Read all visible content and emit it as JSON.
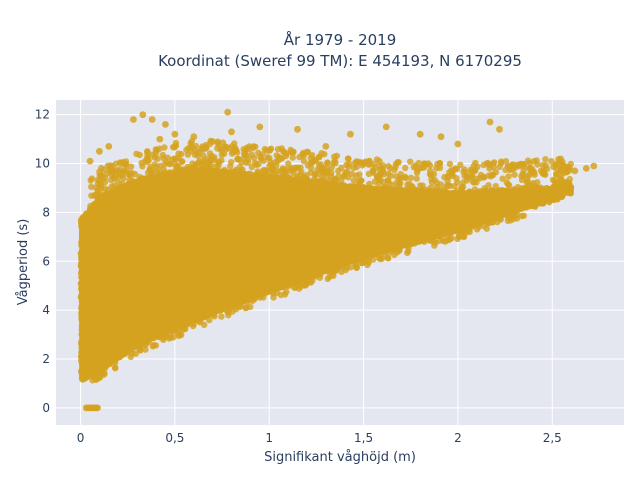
{
  "chart_data": {
    "type": "scatter",
    "title": "År 1979 - 2019",
    "subtitle": "Koordinat (Sweref 99 TM): E 454193, N 6170295",
    "xlabel": "Signifikant våghöjd (m)",
    "ylabel": "Vågperiod (s)",
    "xlim": [
      -0.13,
      2.88
    ],
    "ylim": [
      -0.7,
      12.6
    ],
    "x_ticks": [
      0,
      0.5,
      1,
      1.5,
      2,
      2.5
    ],
    "x_tick_labels": [
      "0",
      "0,5",
      "1",
      "1,5",
      "2",
      "2,5"
    ],
    "y_ticks": [
      0,
      2,
      4,
      6,
      8,
      10,
      12
    ],
    "y_tick_labels": [
      "0",
      "2",
      "4",
      "6",
      "8",
      "10",
      "12"
    ],
    "grid": true,
    "legend": "none",
    "colors": {
      "marker": "#d4a21f",
      "plot_bg": "#e5e7f0",
      "grid": "#ffffff",
      "text": "#2a3f5f"
    },
    "series": [
      {
        "point_density": "very dense band between lower edge and upper edge",
        "lower_edge": {
          "x": [
            0.02,
            0.1,
            0.3,
            0.6,
            1.0,
            1.5,
            2.0,
            2.5
          ],
          "y": [
            1.2,
            1.6,
            2.6,
            3.6,
            4.8,
            6.2,
            7.3,
            8.6
          ]
        },
        "upper_edge": {
          "x": [
            0.02,
            0.1,
            0.3,
            0.6,
            1.0,
            1.5,
            2.0,
            2.5
          ],
          "y": [
            7.8,
            8.6,
            9.3,
            9.8,
            9.5,
            9.0,
            8.8,
            9.0
          ]
        },
        "outliers": [
          {
            "x": 0.78,
            "y": 12.1
          },
          {
            "x": 0.33,
            "y": 12.0
          },
          {
            "x": 0.38,
            "y": 11.8
          },
          {
            "x": 0.28,
            "y": 11.8
          },
          {
            "x": 0.45,
            "y": 11.6
          },
          {
            "x": 1.15,
            "y": 11.4
          },
          {
            "x": 0.8,
            "y": 11.3
          },
          {
            "x": 0.95,
            "y": 11.5
          },
          {
            "x": 2.17,
            "y": 11.7
          },
          {
            "x": 2.22,
            "y": 11.4
          },
          {
            "x": 1.62,
            "y": 11.5
          },
          {
            "x": 1.43,
            "y": 11.2
          },
          {
            "x": 1.91,
            "y": 11.1
          },
          {
            "x": 1.8,
            "y": 11.2
          },
          {
            "x": 2.0,
            "y": 10.8
          },
          {
            "x": 0.6,
            "y": 11.1
          },
          {
            "x": 0.7,
            "y": 10.9
          },
          {
            "x": 1.3,
            "y": 10.7
          },
          {
            "x": 0.5,
            "y": 11.2
          },
          {
            "x": 0.42,
            "y": 11.0
          },
          {
            "x": 0.15,
            "y": 10.7
          },
          {
            "x": 0.1,
            "y": 10.5
          },
          {
            "x": 0.05,
            "y": 10.1
          },
          {
            "x": 2.72,
            "y": 9.9
          },
          {
            "x": 2.68,
            "y": 9.8
          },
          {
            "x": 2.62,
            "y": 9.7
          },
          {
            "x": 2.38,
            "y": 9.8
          },
          {
            "x": 2.45,
            "y": 9.6
          }
        ],
        "zero_period_points": {
          "x": [
            0.03,
            0.04,
            0.05,
            0.06,
            0.07,
            0.08,
            0.09
          ],
          "y": [
            0,
            0,
            0,
            0,
            0,
            0,
            0
          ]
        }
      }
    ]
  }
}
